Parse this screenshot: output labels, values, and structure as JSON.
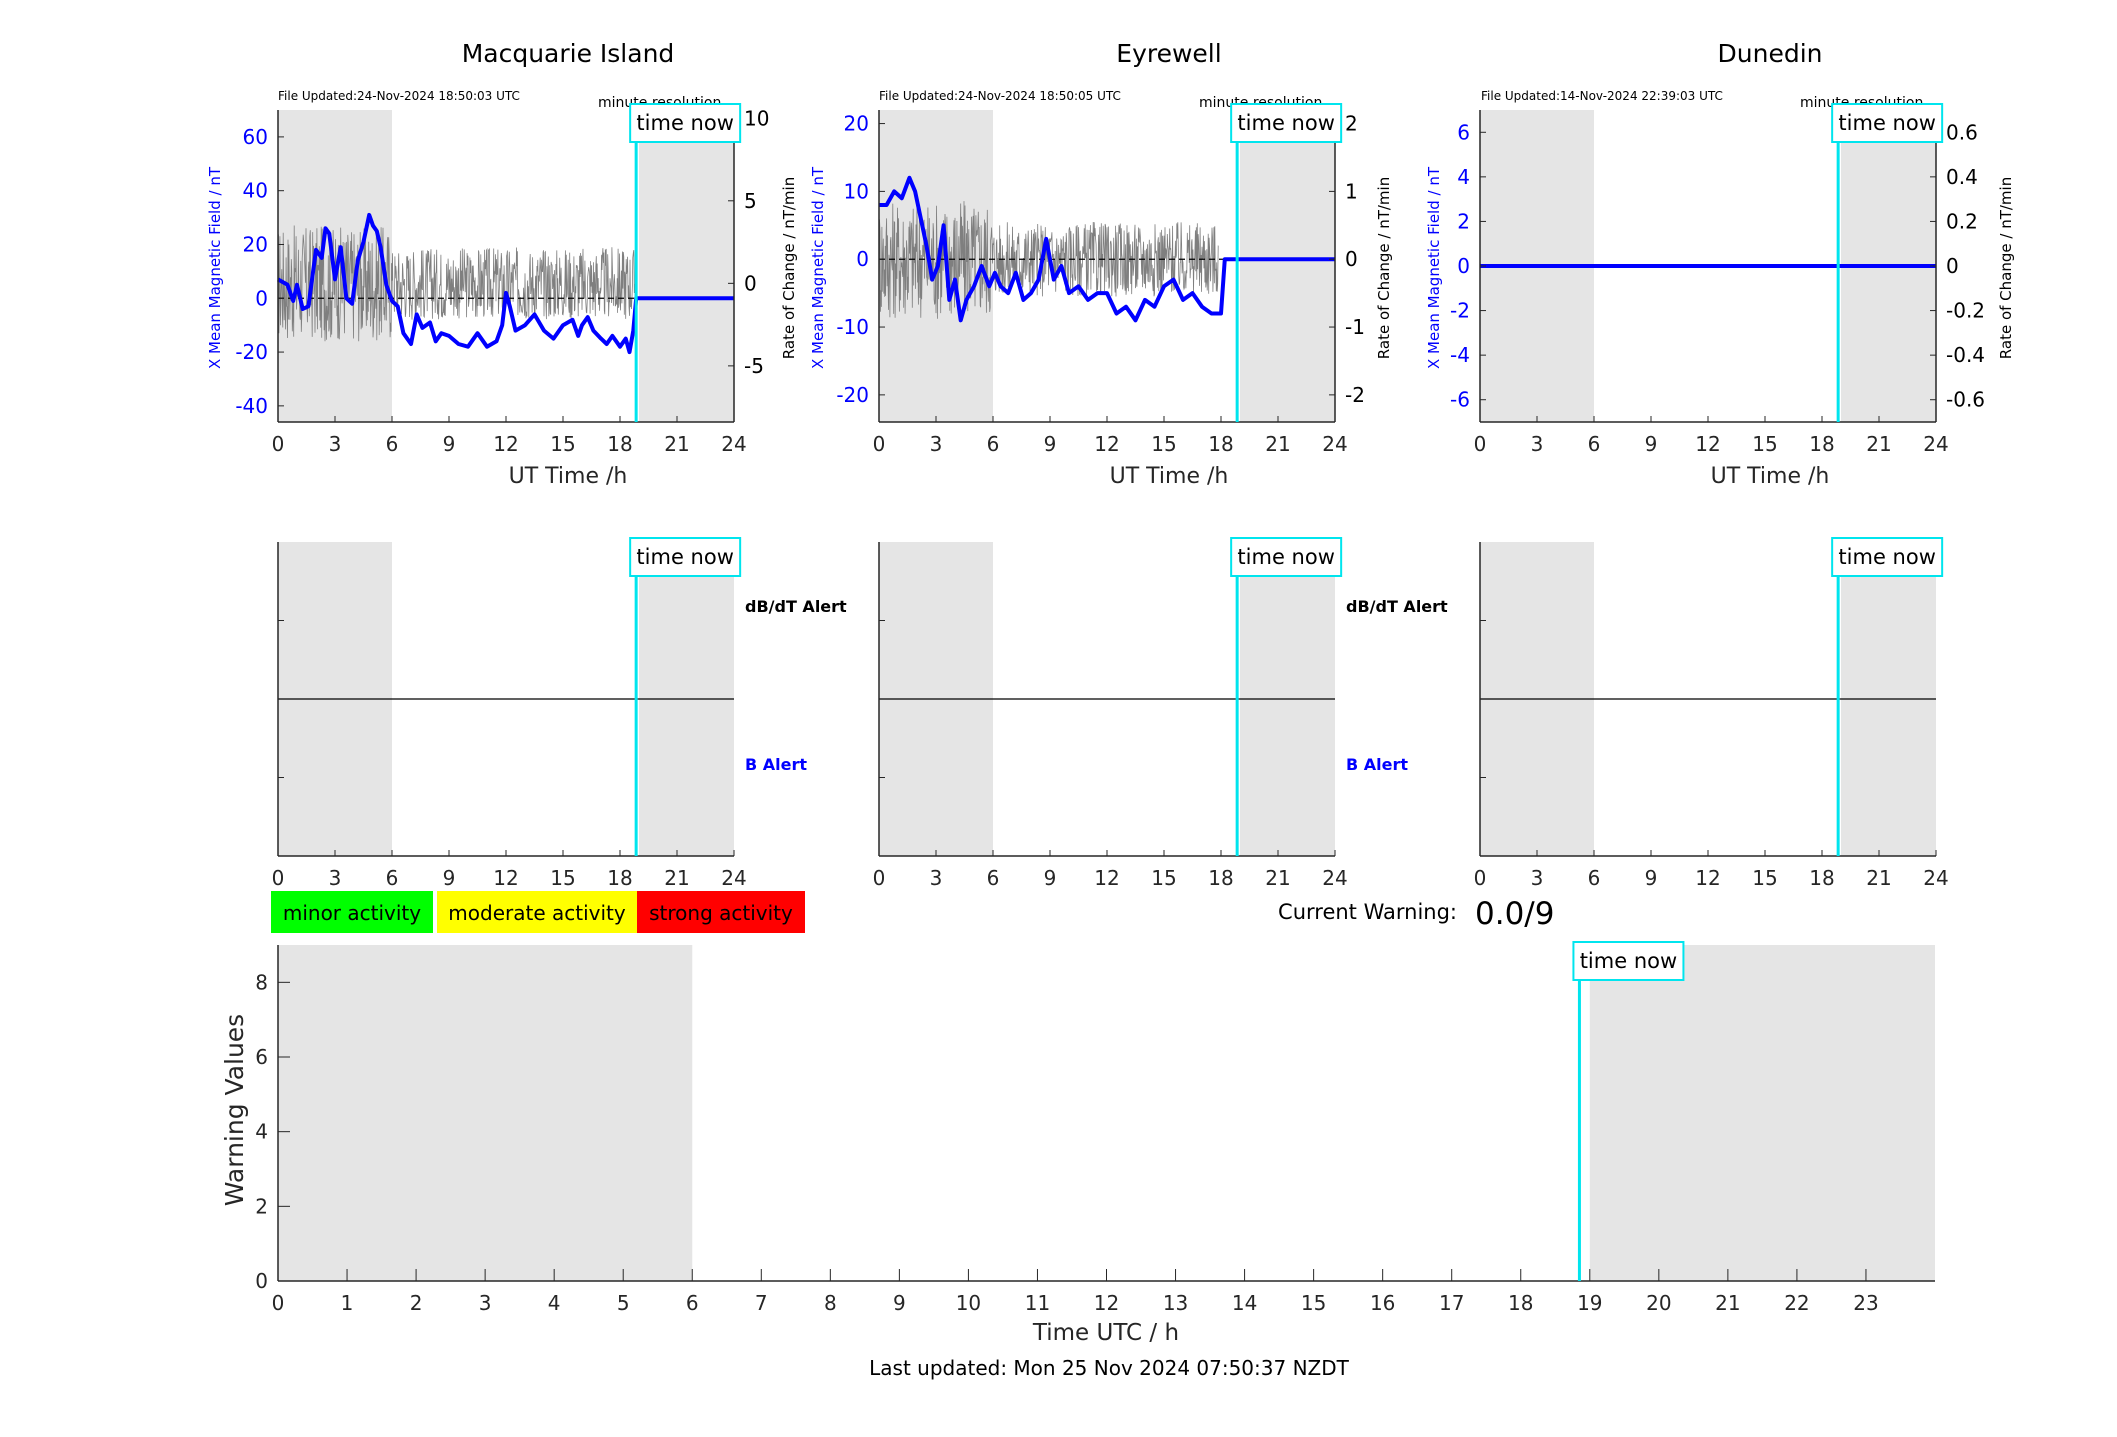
{
  "colors": {
    "b_field": "#0000ff",
    "rate": "#7f7f7f",
    "time_now": "#00e5ee",
    "shade": "#e5e5e5",
    "minor": "#00ff00",
    "moderate": "#ffff00",
    "strong": "#ff0000",
    "axis": "#262626"
  },
  "common": {
    "x_label": "UT Time /h",
    "x_ticks": [
      "0",
      "3",
      "6",
      "9",
      "12",
      "15",
      "18",
      "21",
      "24"
    ],
    "time_now_label": "time now",
    "resolution_label": "minute resolution",
    "dbdt_alert_label": "dB/dT Alert",
    "b_alert_label": "B Alert"
  },
  "legend": {
    "minor": "minor activity",
    "moderate": "moderate activity",
    "strong": "strong activity"
  },
  "current_warning": {
    "label": "Current Warning:",
    "value": "0.0/9"
  },
  "footer": {
    "last_updated": "Last updated: Mon 25 Nov 2024 07:50:37 NZDT"
  },
  "chart_data": [
    {
      "type": "line",
      "title": "Macquarie Island",
      "file_updated": "File Updated:24-Nov-2024 18:50:03 UTC",
      "ylabel_left": "X Mean Magnetic Field / nT",
      "ylabel_right": "Rate of Change / nT/min",
      "xlim": [
        0,
        24
      ],
      "ylim_left": [
        -46,
        70
      ],
      "ylim_right": [
        -8.4,
        10.5
      ],
      "yticks_left": [
        -40,
        -20,
        0,
        20,
        40,
        60
      ],
      "yticks_right": [
        -5,
        0,
        5,
        10
      ],
      "time_now": 18.85,
      "shaded": [
        [
          0,
          6
        ],
        [
          19,
          24
        ]
      ],
      "series_b": {
        "x": [
          0,
          0.5,
          0.8,
          1,
          1.3,
          1.6,
          2,
          2.3,
          2.5,
          2.7,
          3,
          3.3,
          3.6,
          3.9,
          4.2,
          4.5,
          4.8,
          5,
          5.2,
          5.4,
          5.7,
          6,
          6.3,
          6.6,
          7,
          7.3,
          7.6,
          8,
          8.3,
          8.6,
          9,
          9.5,
          10,
          10.5,
          11,
          11.5,
          11.8,
          12,
          12.2,
          12.5,
          13,
          13.5,
          14,
          14.5,
          15,
          15.5,
          15.8,
          16,
          16.3,
          16.6,
          17,
          17.3,
          17.6,
          18,
          18.3,
          18.5,
          18.7,
          18.85,
          19,
          20,
          21,
          22,
          23,
          24
        ],
        "y": [
          7,
          5,
          -1,
          5,
          -4,
          -3,
          18,
          15,
          26,
          24,
          7,
          19,
          0,
          -2,
          14,
          21,
          31,
          27,
          25,
          19,
          5,
          -1,
          -3,
          -13,
          -17,
          -6,
          -11,
          -9,
          -16,
          -13,
          -14,
          -17,
          -18,
          -13,
          -18,
          -16,
          -10,
          2,
          -3,
          -12,
          -10,
          -6,
          -12,
          -15,
          -10,
          -8,
          -14,
          -10,
          -7,
          -12,
          -15,
          -17,
          -14,
          -18,
          -15,
          -20,
          -12,
          0,
          0,
          0,
          0,
          0,
          0,
          0
        ]
      },
      "rate_amplitude": 2.2,
      "rate_end": 18.8
    },
    {
      "type": "line",
      "title": "Eyrewell",
      "file_updated": "File Updated:24-Nov-2024 18:50:05 UTC",
      "ylabel_left": "X Mean Magnetic Field / nT",
      "ylabel_right": "Rate of Change / nT/min",
      "xlim": [
        0,
        24
      ],
      "ylim_left": [
        -24,
        22
      ],
      "ylim_right": [
        -2.4,
        2.2
      ],
      "yticks_left": [
        -20,
        -10,
        0,
        10,
        20
      ],
      "yticks_right": [
        -2,
        -1,
        0,
        1,
        2
      ],
      "time_now": 18.85,
      "shaded": [
        [
          0,
          6
        ],
        [
          19,
          24
        ]
      ],
      "series_b": {
        "x": [
          0,
          0.4,
          0.8,
          1.2,
          1.6,
          1.9,
          2.2,
          2.5,
          2.8,
          3.1,
          3.4,
          3.7,
          4,
          4.3,
          4.6,
          5,
          5.4,
          5.8,
          6.1,
          6.4,
          6.8,
          7.2,
          7.6,
          8,
          8.4,
          8.8,
          9.2,
          9.6,
          10,
          10.5,
          11,
          11.5,
          12,
          12.5,
          13,
          13.5,
          14,
          14.5,
          15,
          15.5,
          16,
          16.5,
          17,
          17.5,
          17.9,
          18,
          18.2,
          19,
          20,
          21,
          22,
          23,
          24
        ],
        "y": [
          8,
          8,
          10,
          9,
          12,
          10,
          6,
          2,
          -3,
          -1,
          5,
          -6,
          -3,
          -9,
          -6,
          -4,
          -1,
          -4,
          -2,
          -4,
          -5,
          -2,
          -6,
          -5,
          -3,
          3,
          -3,
          -1,
          -5,
          -4,
          -6,
          -5,
          -5,
          -8,
          -7,
          -9,
          -6,
          -7,
          -4,
          -3,
          -6,
          -5,
          -7,
          -8,
          -8,
          -8,
          0,
          0,
          0,
          0,
          0,
          0,
          0
        ]
      },
      "rate_amplitude": 0.55,
      "rate_end": 17.9
    },
    {
      "type": "line",
      "title": "Dunedin",
      "file_updated": "File Updated:14-Nov-2024 22:39:03 UTC",
      "ylabel_left": "X Mean Magnetic Field / nT",
      "ylabel_right": "Rate of Change / nT/min",
      "xlim": [
        0,
        24
      ],
      "ylim_left": [
        -7,
        7
      ],
      "ylim_right": [
        -0.7,
        0.7
      ],
      "yticks_left": [
        -6,
        -4,
        -2,
        0,
        2,
        4,
        6
      ],
      "yticks_right": [
        -0.6,
        -0.4,
        -0.2,
        0,
        0.2,
        0.4,
        0.6
      ],
      "time_now": 18.85,
      "shaded": [
        [
          0,
          6
        ],
        [
          19,
          24
        ]
      ],
      "series_b": {
        "x": [
          0,
          24
        ],
        "y": [
          0,
          0
        ]
      },
      "rate_amplitude": 0,
      "rate_end": 0
    },
    {
      "type": "line",
      "title": "",
      "xlabel": "Time UTC / h",
      "ylabel": "Warning Values",
      "xlim": [
        0,
        24
      ],
      "ylim": [
        0,
        9
      ],
      "xticks": [
        "0",
        "1",
        "2",
        "3",
        "4",
        "5",
        "6",
        "7",
        "8",
        "9",
        "10",
        "11",
        "12",
        "13",
        "14",
        "15",
        "16",
        "17",
        "18",
        "19",
        "20",
        "21",
        "22",
        "23"
      ],
      "yticks": [
        "0",
        "2",
        "4",
        "6",
        "8"
      ],
      "time_now": 18.85,
      "shaded": [
        [
          0,
          6
        ],
        [
          19,
          24
        ]
      ],
      "series": []
    }
  ]
}
